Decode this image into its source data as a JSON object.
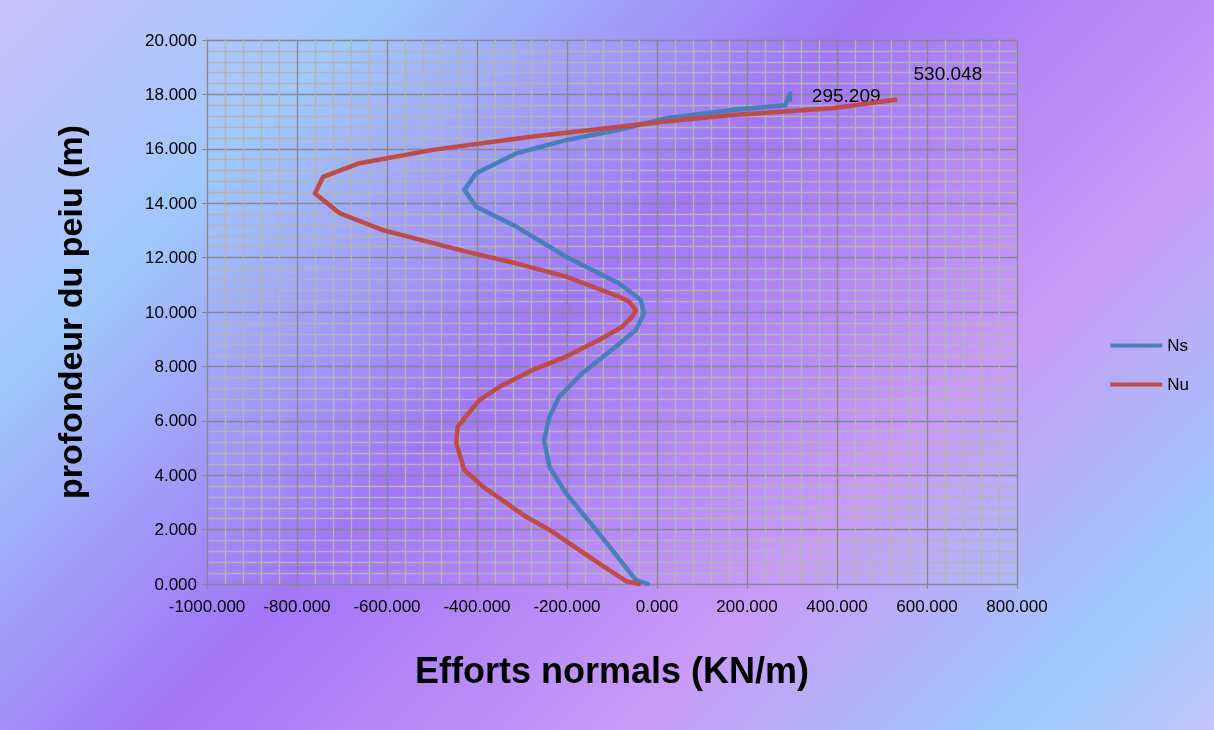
{
  "chart_data": {
    "type": "line",
    "xlabel": "Efforts normals (KN/m)",
    "ylabel": "profondeur du peiu (m)",
    "xlim": [
      -1000,
      800
    ],
    "xticks": [
      {
        "value": -1000,
        "label": "-1000.000"
      },
      {
        "value": -800,
        "label": "-800.000"
      },
      {
        "value": -600,
        "label": "-600.000"
      },
      {
        "value": -400,
        "label": "-400.000"
      },
      {
        "value": -200,
        "label": "-200.000"
      },
      {
        "value": 0,
        "label": "0.000"
      },
      {
        "value": 200,
        "label": "200.000"
      },
      {
        "value": 400,
        "label": "400.000"
      },
      {
        "value": 600,
        "label": "600.000"
      },
      {
        "value": 800,
        "label": "800.000"
      }
    ],
    "ylim": [
      0,
      20
    ],
    "yticks": [
      {
        "value": 0,
        "label": "0.000"
      },
      {
        "value": 2,
        "label": "2.000"
      },
      {
        "value": 4,
        "label": "4.000"
      },
      {
        "value": 6,
        "label": "6.000"
      },
      {
        "value": 8,
        "label": "8.000"
      },
      {
        "value": 10,
        "label": "10.000"
      },
      {
        "value": 12,
        "label": "12.000"
      },
      {
        "value": 14,
        "label": "14.000"
      },
      {
        "value": 16,
        "label": "16.000"
      },
      {
        "value": 18,
        "label": "18.000"
      },
      {
        "value": 20,
        "label": "20.000"
      }
    ],
    "grid": true,
    "legend": "right",
    "marker": "none",
    "line_style": "solid",
    "series": [
      {
        "name": "Ns",
        "color": "#4a7ebb",
        "x": [
          -21,
          -47,
          -129,
          -202,
          -239,
          -251,
          -239,
          -217,
          -166,
          -92,
          -47,
          -29,
          -36,
          -84,
          -202,
          -313,
          -402,
          -428,
          -402,
          -313,
          -202,
          -84,
          19,
          167,
          285,
          296,
          295.209
        ],
        "values": [
          0,
          0.15,
          1.86,
          3.33,
          4.31,
          5.29,
          6.15,
          6.89,
          7.75,
          8.72,
          9.34,
          9.95,
          10.44,
          11.05,
          12.03,
          13.14,
          13.87,
          14.49,
          15.1,
          15.83,
          16.32,
          16.7,
          17.12,
          17.43,
          17.6,
          18.04,
          17.8
        ]
      },
      {
        "name": "Nu",
        "color": "#be4b48",
        "x": [
          -40,
          -68,
          -129,
          -239,
          -291,
          -387,
          -428,
          -446,
          -443,
          -395,
          -350,
          -276,
          -202,
          -129,
          -77,
          -55,
          -47,
          -62,
          -84,
          -202,
          -313,
          -424,
          -609,
          -705,
          -760,
          -742,
          -661,
          -498,
          -276,
          -84,
          19,
          167,
          389,
          530.048
        ],
        "values": [
          0,
          0.1,
          0.76,
          1.99,
          2.47,
          3.58,
          4.19,
          5.17,
          5.78,
          6.76,
          7.25,
          7.87,
          8.36,
          8.97,
          9.46,
          9.83,
          10.07,
          10.38,
          10.56,
          11.3,
          11.79,
          12.22,
          13.01,
          13.63,
          14.36,
          14.97,
          15.47,
          15.96,
          16.45,
          16.81,
          17.0,
          17.24,
          17.49,
          17.8
        ]
      }
    ],
    "annotations": [
      {
        "text": "295.209",
        "x": 295.209,
        "y": 17.8
      },
      {
        "text": "530.048",
        "x": 530.048,
        "y": 17.8
      }
    ]
  }
}
